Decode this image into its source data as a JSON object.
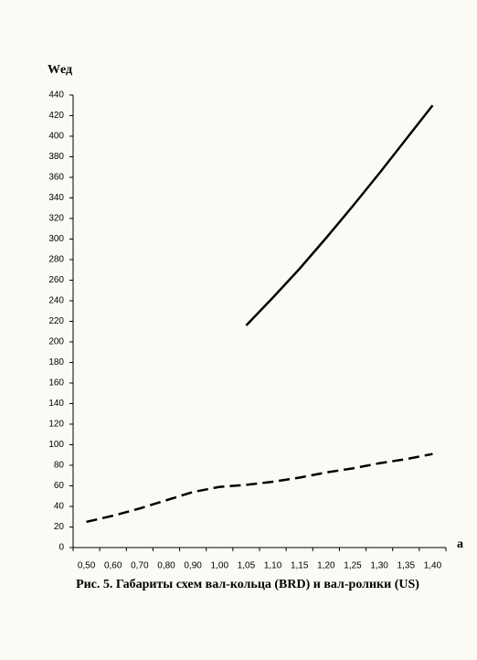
{
  "chart_data": {
    "type": "line",
    "title": "Рис. 5. Габариты схем вал-кольца (BRD) и вал-ролики (US)",
    "y_label": "Wед",
    "x_label": "a",
    "categories": [
      "0,50",
      "0,60",
      "0,70",
      "0,80",
      "0,90",
      "1,00",
      "1,05",
      "1,10",
      "1,15",
      "1,20",
      "1,25",
      "1,30",
      "1,35",
      "1,40"
    ],
    "series": [
      {
        "color": "#000000",
        "dash": false,
        "values": [
          null,
          null,
          null,
          null,
          null,
          null,
          216,
          243,
          271,
          301,
          332,
          364,
          397,
          430
        ]
      },
      {
        "color": "#000000",
        "dash": true,
        "values": [
          25,
          31,
          38,
          46,
          54,
          59,
          61,
          64,
          68,
          73,
          77,
          82,
          86,
          91
        ]
      }
    ],
    "ylim": [
      0,
      440
    ],
    "yticks": [
      0,
      20,
      40,
      60,
      80,
      100,
      120,
      140,
      160,
      180,
      200,
      220,
      240,
      260,
      280,
      300,
      320,
      340,
      360,
      380,
      400,
      420,
      440
    ],
    "grid": false
  }
}
